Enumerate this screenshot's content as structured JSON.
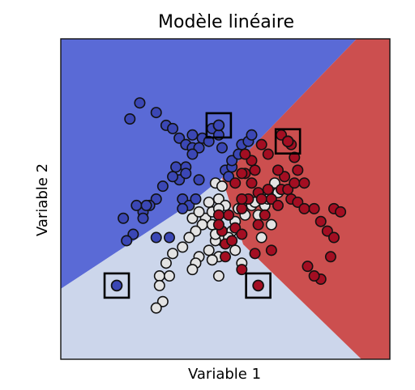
{
  "chart_data": {
    "type": "scatter",
    "title": "Modèle linéaire",
    "xlabel": "Variable 1",
    "ylabel": "Variable 2",
    "grid": false,
    "legend": "none",
    "ticks": "none",
    "xlim": [
      0,
      100
    ],
    "ylim": [
      0,
      100
    ],
    "background_regions": [
      {
        "class": "blue",
        "color": "#5a6ad6"
      },
      {
        "class": "white",
        "color": "#ccd6eb"
      },
      {
        "class": "red",
        "color": "#cc4f4f"
      }
    ],
    "series": [
      {
        "class": "blue",
        "fill": "#3b47b5",
        "points": [
          [
            21,
            75
          ],
          [
            24,
            80
          ],
          [
            29,
            77
          ],
          [
            32,
            73
          ],
          [
            34,
            72
          ],
          [
            36,
            69
          ],
          [
            38,
            67
          ],
          [
            40,
            70
          ],
          [
            40,
            66
          ],
          [
            42,
            66
          ],
          [
            43,
            69
          ],
          [
            45,
            68
          ],
          [
            46,
            72
          ],
          [
            48,
            73
          ],
          [
            48,
            70
          ],
          [
            49,
            66
          ],
          [
            50,
            59
          ],
          [
            51,
            57
          ],
          [
            52,
            60
          ],
          [
            52,
            62
          ],
          [
            54,
            64
          ],
          [
            55,
            67
          ],
          [
            57,
            68
          ],
          [
            58,
            70
          ],
          [
            40,
            64
          ],
          [
            38,
            60
          ],
          [
            36,
            56
          ],
          [
            37,
            50
          ],
          [
            39,
            48
          ],
          [
            41,
            50
          ],
          [
            35,
            60
          ],
          [
            31,
            54
          ],
          [
            29,
            50
          ],
          [
            27,
            48
          ],
          [
            25,
            46
          ],
          [
            23,
            48
          ],
          [
            25,
            44
          ],
          [
            26,
            48
          ],
          [
            22,
            39
          ],
          [
            20,
            37
          ],
          [
            19,
            44
          ],
          [
            33,
            38
          ],
          [
            29,
            38
          ],
          [
            37,
            47
          ],
          [
            34,
            57
          ],
          [
            38,
            58
          ],
          [
            42,
            56
          ]
        ]
      },
      {
        "class": "white",
        "fill": "#e3e3e3",
        "points": [
          [
            48,
            50
          ],
          [
            47,
            55
          ],
          [
            49,
            54
          ],
          [
            50,
            48
          ],
          [
            44,
            44
          ],
          [
            46,
            46
          ],
          [
            43,
            42
          ],
          [
            41,
            40
          ],
          [
            39,
            38
          ],
          [
            40,
            44
          ],
          [
            37,
            35
          ],
          [
            34,
            33
          ],
          [
            32,
            30
          ],
          [
            30,
            26
          ],
          [
            33,
            26
          ],
          [
            42,
            32
          ],
          [
            41,
            30
          ],
          [
            40,
            28
          ],
          [
            45,
            34
          ],
          [
            49,
            37
          ],
          [
            48,
            32
          ],
          [
            47,
            37
          ],
          [
            52,
            40
          ],
          [
            53,
            43
          ],
          [
            54,
            47
          ],
          [
            56,
            45
          ],
          [
            58,
            48
          ],
          [
            59,
            49
          ],
          [
            60,
            45
          ],
          [
            62,
            48
          ],
          [
            63,
            50
          ],
          [
            65,
            55
          ],
          [
            66,
            52
          ],
          [
            64,
            42
          ],
          [
            61,
            38
          ],
          [
            55,
            30
          ],
          [
            53,
            34
          ],
          [
            51,
            38
          ],
          [
            46,
            42
          ],
          [
            42,
            46
          ],
          [
            45,
            49
          ],
          [
            48,
            47
          ],
          [
            30,
            23
          ],
          [
            31,
            18
          ],
          [
            29,
            16
          ],
          [
            48,
            26
          ],
          [
            46,
            31
          ],
          [
            47,
            39
          ]
        ]
      },
      {
        "class": "red",
        "fill": "#a30e22",
        "points": [
          [
            53,
            55
          ],
          [
            56,
            58
          ],
          [
            58,
            55
          ],
          [
            59,
            59
          ],
          [
            60,
            52
          ],
          [
            61,
            50
          ],
          [
            63,
            53
          ],
          [
            64,
            50
          ],
          [
            66,
            48
          ],
          [
            67,
            53
          ],
          [
            68,
            57
          ],
          [
            69,
            53
          ],
          [
            71,
            55
          ],
          [
            70,
            50
          ],
          [
            72,
            49
          ],
          [
            74,
            47
          ],
          [
            77,
            47
          ],
          [
            79,
            43
          ],
          [
            81,
            40
          ],
          [
            83,
            38
          ],
          [
            83,
            47
          ],
          [
            85,
            46
          ],
          [
            82,
            32
          ],
          [
            79,
            25
          ],
          [
            77,
            26
          ],
          [
            75,
            29
          ],
          [
            70,
            67
          ],
          [
            67,
            70
          ],
          [
            63,
            64
          ],
          [
            61,
            67
          ],
          [
            58,
            62
          ],
          [
            56,
            64
          ],
          [
            55,
            58
          ],
          [
            57,
            50
          ],
          [
            55,
            47
          ],
          [
            53,
            41
          ],
          [
            55,
            39
          ],
          [
            51,
            45
          ],
          [
            50,
            36
          ],
          [
            48,
            45
          ],
          [
            49,
            40
          ],
          [
            52,
            37
          ],
          [
            60,
            42
          ],
          [
            62,
            45
          ],
          [
            64,
            34
          ],
          [
            59,
            33
          ],
          [
            55,
            28
          ],
          [
            50,
            32
          ],
          [
            48,
            42
          ],
          [
            55,
            50
          ],
          [
            66,
            59
          ],
          [
            72,
            59
          ],
          [
            74,
            55
          ],
          [
            71,
            63
          ]
        ]
      }
    ],
    "highlighted": [
      {
        "class": "blue",
        "x": 48,
        "y": 73
      },
      {
        "class": "red",
        "x": 69,
        "y": 68
      },
      {
        "class": "blue",
        "x": 17,
        "y": 23
      },
      {
        "class": "red",
        "x": 60,
        "y": 23
      }
    ]
  }
}
